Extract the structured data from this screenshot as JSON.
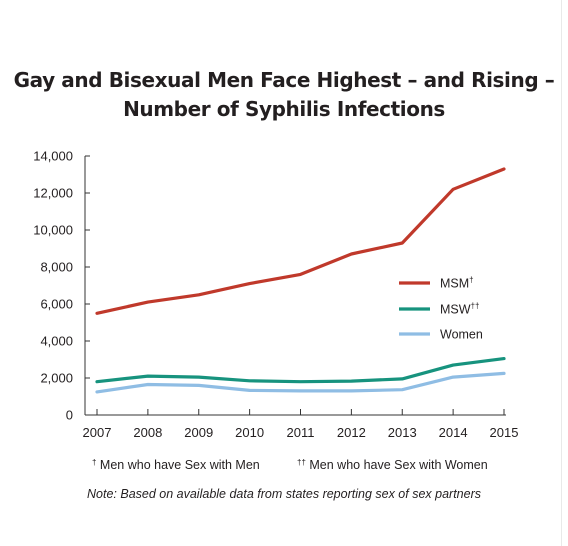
{
  "chart_data": {
    "type": "line",
    "title": [
      "Gay and Bisexual Men Face Highest – and Rising –",
      "Number of Syphilis Infections"
    ],
    "x": [
      "2007",
      "2008",
      "2009",
      "2010",
      "2011",
      "2012",
      "2013",
      "2014",
      "2015"
    ],
    "ylim": [
      0,
      14000
    ],
    "yticks": [
      0,
      2000,
      4000,
      6000,
      8000,
      10000,
      12000,
      14000
    ],
    "ytick_labels": [
      "0",
      "2,000",
      "4,000",
      "6,000",
      "8,000",
      "10,000",
      "12,000",
      "14,000"
    ],
    "grid": false,
    "legend_position": "right",
    "series": [
      {
        "name": "MSM",
        "marker": "†",
        "color": "#c0392b",
        "values": [
          5500,
          6100,
          6500,
          7100,
          7600,
          8700,
          9300,
          12200,
          13300
        ]
      },
      {
        "name": "MSW",
        "marker": "††",
        "color": "#17937e",
        "values": [
          1800,
          2100,
          2050,
          1850,
          1800,
          1830,
          1950,
          2700,
          3050
        ]
      },
      {
        "name": "Women",
        "marker": "",
        "color": "#8fbde4",
        "values": [
          1250,
          1650,
          1600,
          1330,
          1300,
          1300,
          1370,
          2050,
          2250
        ]
      }
    ]
  },
  "footnotes": {
    "msm": {
      "marker": "†",
      "text": " Men who have Sex with Men"
    },
    "msw": {
      "marker": "††",
      "text": " Men who have Sex with Women"
    }
  },
  "note": "Note: Based on available data from states reporting sex of sex partners"
}
